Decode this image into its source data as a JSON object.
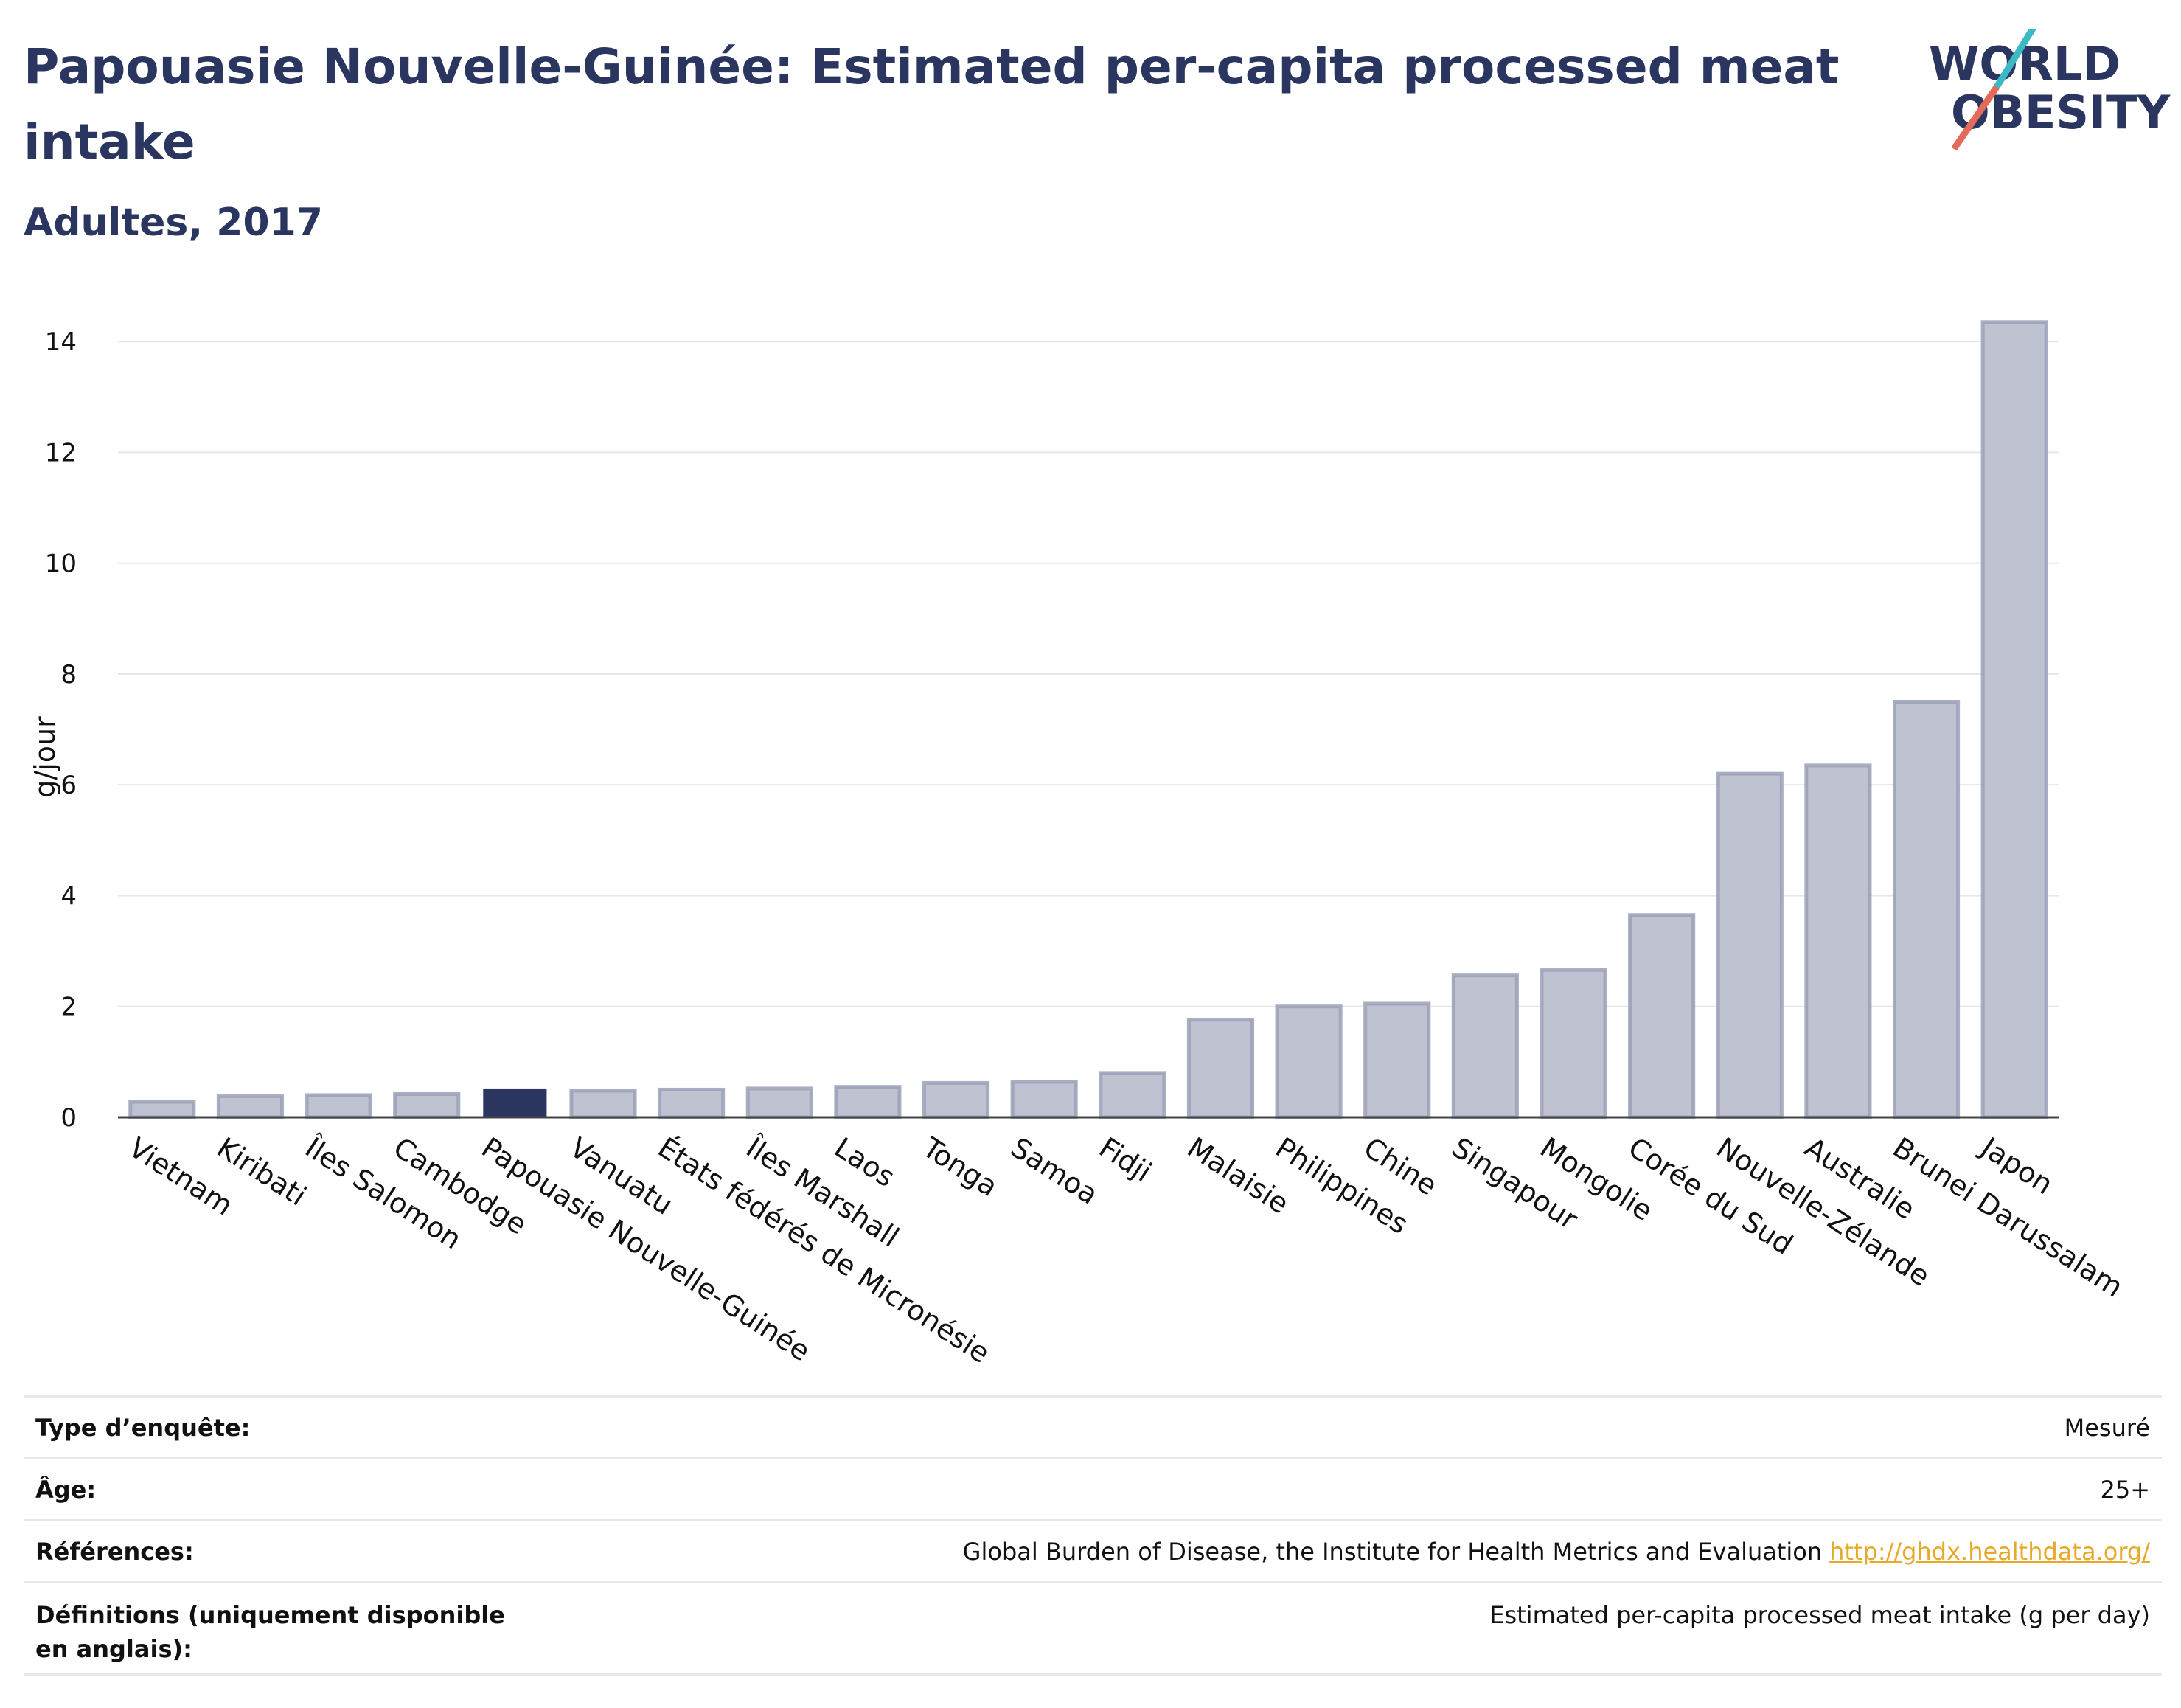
{
  "title": "Papouasie Nouvelle-Guinée: Estimated per-capita processed meat intake",
  "subtitle": "Adultes, 2017",
  "logo": {
    "line1": "WORLD",
    "line2": "OBESITY"
  },
  "colors": {
    "highlight": "#2a3560",
    "bar_fill": "#bfc3d1",
    "bar_stroke": "#9aa0b8",
    "title": "#2a3560",
    "link": "#e7a92a",
    "logo_teal": "#3db9c3",
    "logo_coral": "#e46a5a"
  },
  "chart_data": {
    "type": "bar",
    "ylabel": "g/jour",
    "ylim": [
      0,
      14.6
    ],
    "yticks": [
      0,
      2,
      4,
      6,
      8,
      10,
      12,
      14
    ],
    "grid": true,
    "highlight": "Papouasie Nouvelle-Guinée",
    "categories": [
      "Vietnam",
      "Kiribati",
      "Îles Salomon",
      "Cambodge",
      "Papouasie Nouvelle-Guinée",
      "Vanuatu",
      "États fédérés de Micronésie",
      "Îles Marshall",
      "Laos",
      "Tonga",
      "Samoa",
      "Fidji",
      "Malaisie",
      "Philippines",
      "Chine",
      "Singapour",
      "Mongolie",
      "Corée du Sud",
      "Nouvelle-Zélande",
      "Australie",
      "Brunei Darussalam",
      "Japon"
    ],
    "values": [
      0.28,
      0.38,
      0.4,
      0.42,
      0.52,
      0.48,
      0.5,
      0.52,
      0.55,
      0.62,
      0.64,
      0.8,
      1.76,
      2.0,
      2.05,
      2.56,
      2.66,
      3.65,
      6.2,
      6.35,
      7.5,
      14.35
    ]
  },
  "metadata": [
    {
      "label": "Type d’enquête:",
      "value": "Mesuré"
    },
    {
      "label": "Âge:",
      "value": "25+"
    },
    {
      "label": "Références:",
      "value": "Global Burden of Disease, the Institute for Health Metrics and Evaluation",
      "link": "http://ghdx.healthdata.org/"
    },
    {
      "label": "Définitions (uniquement disponible en anglais):",
      "value": "Estimated per-capita processed meat intake (g per day)"
    }
  ]
}
